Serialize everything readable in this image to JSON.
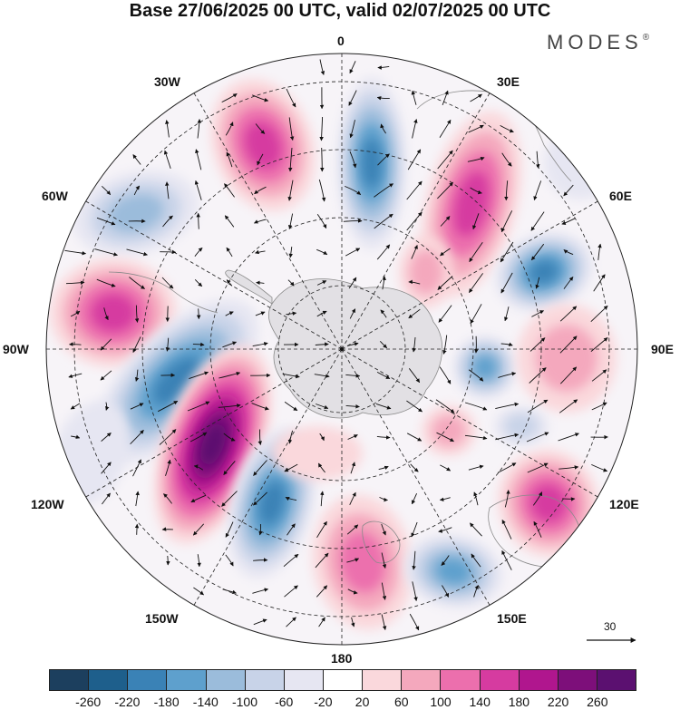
{
  "title": "Base 27/06/2025 00 UTC, valid 02/07/2025 00 UTC",
  "brand": "MODES",
  "brand_mark": "®",
  "longitude_labels": {
    "lon_0": "0",
    "lon_30e": "30E",
    "lon_60e": "60E",
    "lon_90e": "90E",
    "lon_120e": "120E",
    "lon_150e": "150E",
    "lon_180": "180",
    "lon_150w": "150W",
    "lon_120w": "120W",
    "lon_90w": "90W",
    "lon_60w": "60W",
    "lon_30w": "30W"
  },
  "reference_vector_label": "30",
  "colorbar": {
    "labels": [
      "-260",
      "-220",
      "-180",
      "-140",
      "-100",
      "-60",
      "-20",
      "20",
      "60",
      "100",
      "140",
      "180",
      "220",
      "260"
    ],
    "colors": [
      "#1c3f5e",
      "#1e5f8c",
      "#3a82b6",
      "#5ea0cd",
      "#9bbcdb",
      "#c8d3e8",
      "#e6e6f2",
      "#ffffff",
      "#fad8dc",
      "#f4a8bd",
      "#ec6fad",
      "#d63ba0",
      "#b0168e",
      "#7d0f7a",
      "#5b1070"
    ]
  },
  "map_style": {
    "projection": "south-polar-stereographic",
    "land_color": "#dcdcdc",
    "graticule": "dashed",
    "vector_color": "#111111"
  }
}
